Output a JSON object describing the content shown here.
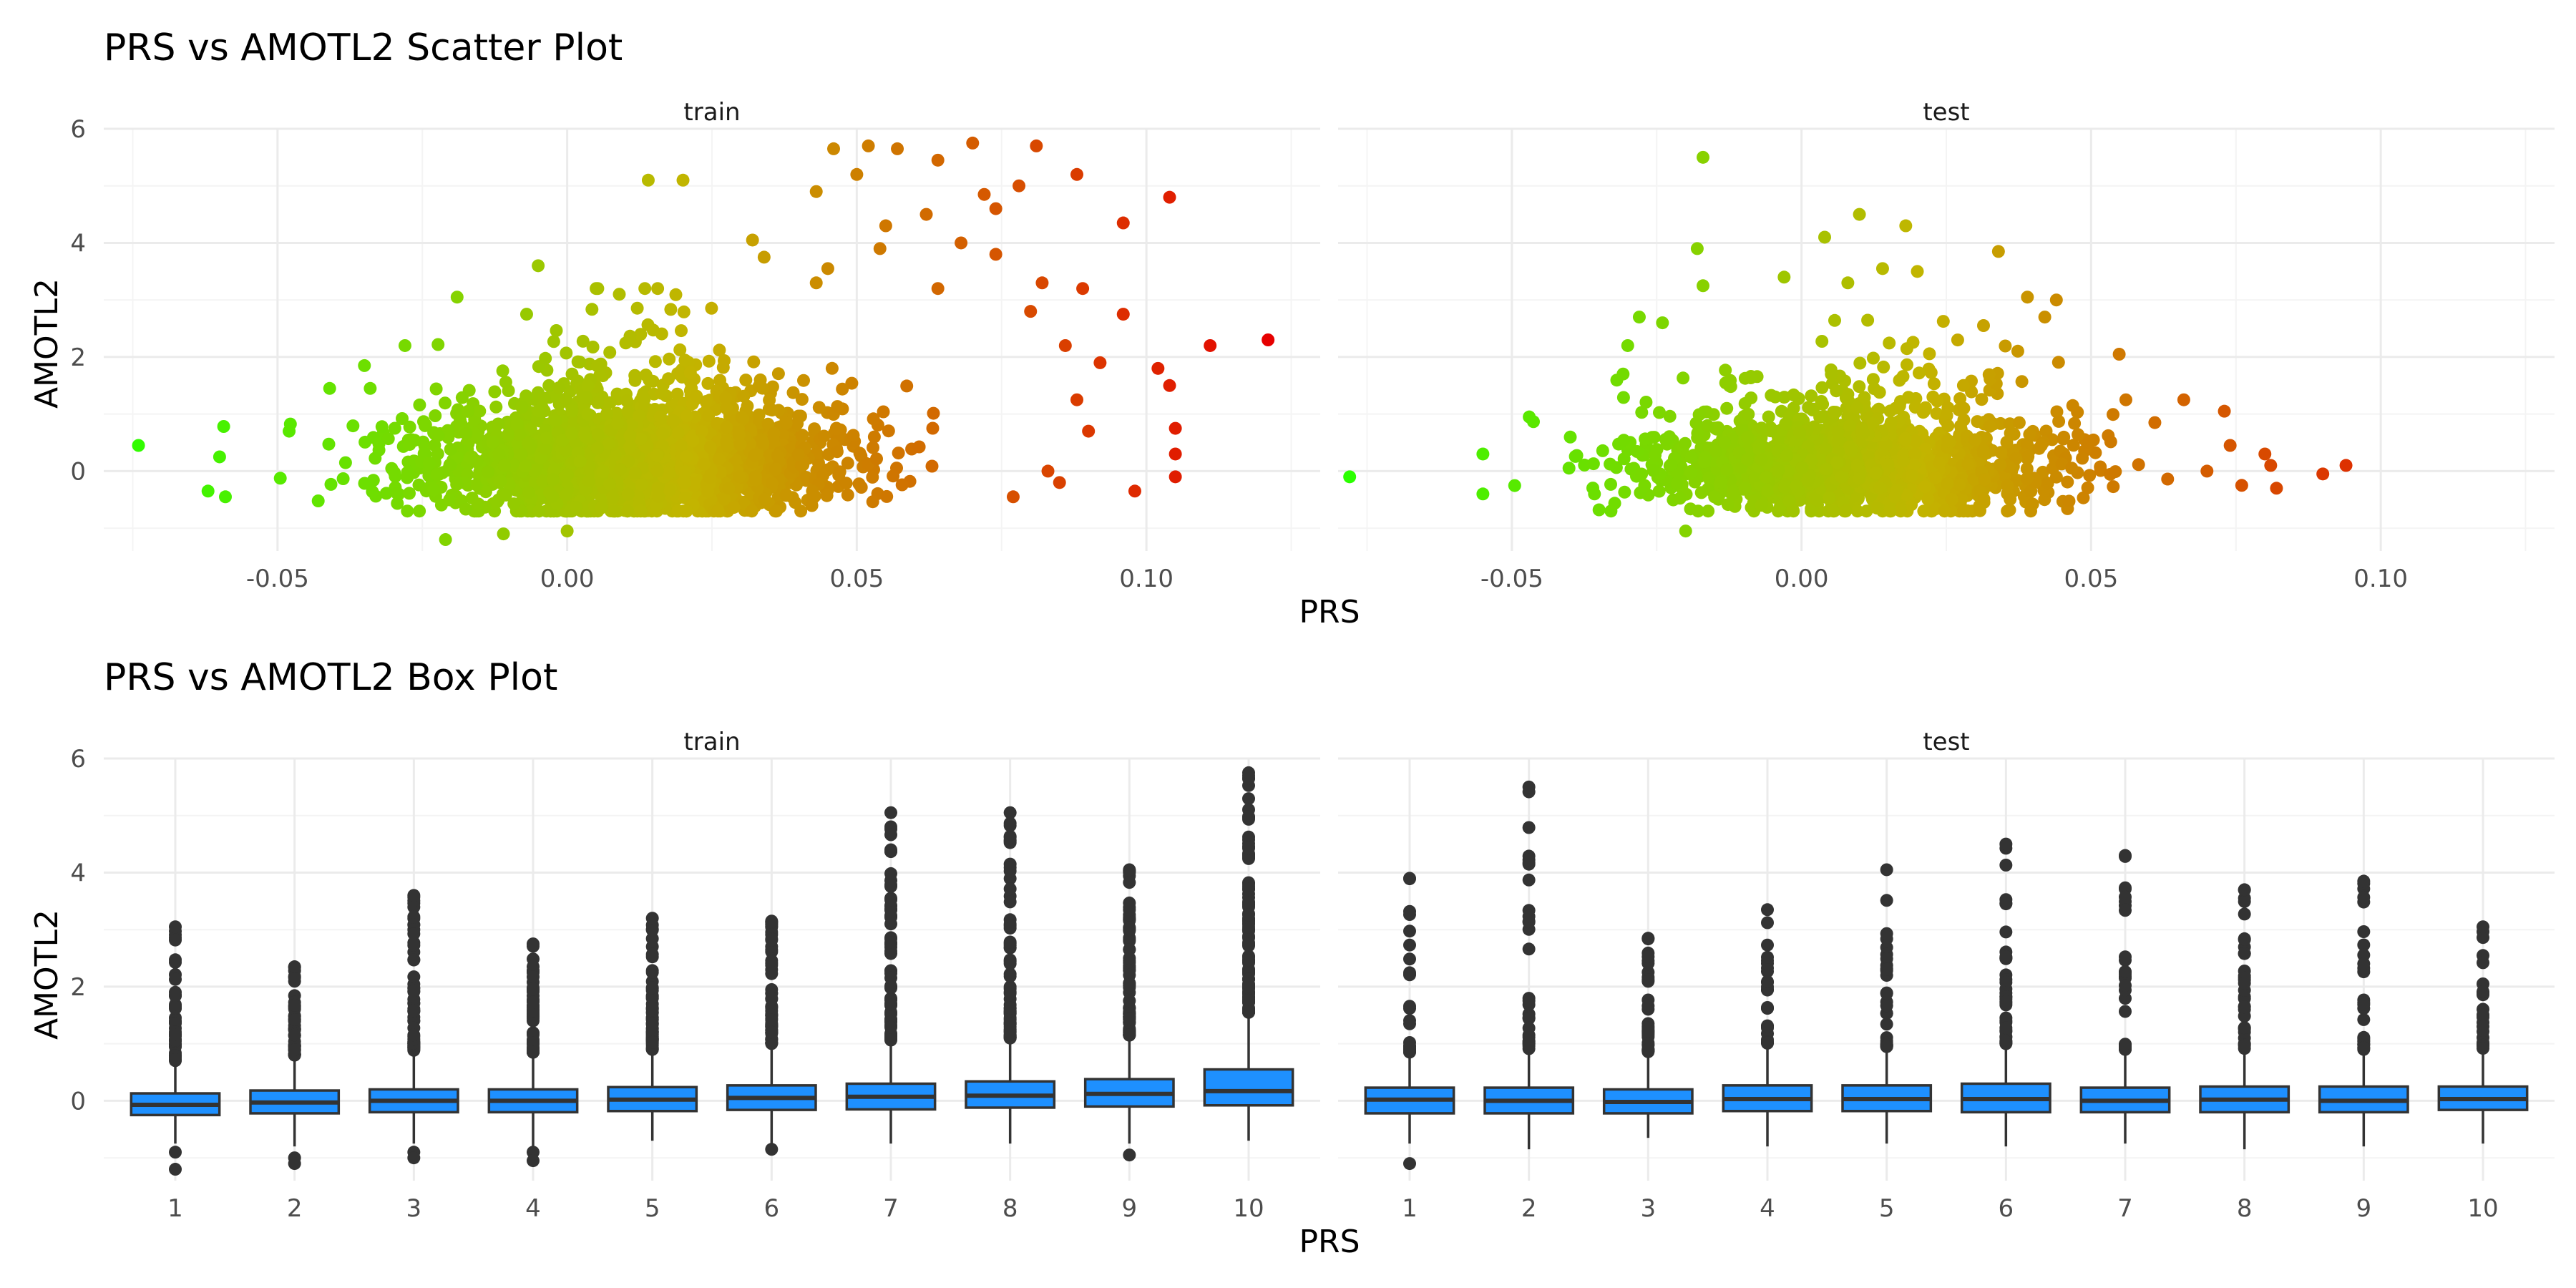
{
  "colors": {
    "grid_major": "#ebebeb",
    "grid_minor": "#f4f4f4",
    "box_fill": "#1e90ff",
    "box_line": "#333333",
    "outlier": "#333333",
    "gradient_low": "#2bff00",
    "gradient_mid": "#c3b400",
    "gradient_high": "#e60000"
  },
  "scatter_title": "PRS vs AMOTL2 Scatter Plot",
  "box_title": "PRS vs AMOTL2 Box Plot",
  "facet_train": "train",
  "facet_test": "test",
  "xlabel": "PRS",
  "ylabel": "AMOTL2",
  "chart_data": [
    {
      "type": "scatter",
      "title": "PRS vs AMOTL2 Scatter Plot",
      "xlabel": "PRS",
      "ylabel": "AMOTL2",
      "xlim": [
        -0.08,
        0.13
      ],
      "ylim": [
        -1.4,
        6.0
      ],
      "x_ticks": [
        -0.05,
        0.0,
        0.05,
        0.1
      ],
      "x_tick_labels": [
        "-0.05",
        "0.00",
        "0.05",
        "0.10"
      ],
      "y_ticks": [
        0,
        2,
        4,
        6
      ],
      "y_tick_labels": [
        "0",
        "2",
        "4",
        "6"
      ],
      "color_by": "PRS",
      "grid": true,
      "facets": [
        {
          "name": "train",
          "core": {
            "x_min": -0.062,
            "x_max": 0.072,
            "x_center": 0.012,
            "y_center": 0.15,
            "y_spread": 0.45
          },
          "notable_points": [
            {
              "x": -0.074,
              "y": 0.45
            },
            {
              "x": 0.121,
              "y": 2.3
            },
            {
              "x": 0.111,
              "y": 2.2
            },
            {
              "x": 0.104,
              "y": 4.8
            },
            {
              "x": 0.096,
              "y": 4.35
            },
            {
              "x": 0.096,
              "y": 2.75
            },
            {
              "x": 0.102,
              "y": 1.8
            },
            {
              "x": 0.104,
              "y": 1.5
            },
            {
              "x": 0.105,
              "y": 0.75
            },
            {
              "x": 0.105,
              "y": 0.3
            },
            {
              "x": 0.105,
              "y": -0.1
            },
            {
              "x": 0.098,
              "y": -0.35
            },
            {
              "x": 0.088,
              "y": 5.2
            },
            {
              "x": 0.081,
              "y": 5.7
            },
            {
              "x": 0.07,
              "y": 5.75
            },
            {
              "x": 0.057,
              "y": 5.65
            },
            {
              "x": 0.052,
              "y": 5.7
            },
            {
              "x": 0.046,
              "y": 5.65
            },
            {
              "x": 0.064,
              "y": 5.45
            },
            {
              "x": 0.05,
              "y": 5.2
            },
            {
              "x": 0.043,
              "y": 4.9
            },
            {
              "x": 0.078,
              "y": 5.0
            },
            {
              "x": 0.072,
              "y": 4.85
            },
            {
              "x": 0.074,
              "y": 4.6
            },
            {
              "x": 0.062,
              "y": 4.5
            },
            {
              "x": 0.055,
              "y": 4.3
            },
            {
              "x": 0.068,
              "y": 4.0
            },
            {
              "x": 0.054,
              "y": 3.9
            },
            {
              "x": 0.074,
              "y": 3.8
            },
            {
              "x": 0.089,
              "y": 3.2
            },
            {
              "x": 0.082,
              "y": 3.3
            },
            {
              "x": 0.032,
              "y": 4.05
            },
            {
              "x": 0.034,
              "y": 3.75
            },
            {
              "x": 0.014,
              "y": 5.1
            },
            {
              "x": 0.02,
              "y": 5.1
            },
            {
              "x": -0.005,
              "y": 3.6
            },
            {
              "x": 0.045,
              "y": 3.55
            },
            {
              "x": 0.043,
              "y": 3.3
            },
            {
              "x": 0.064,
              "y": 3.2
            },
            {
              "x": -0.019,
              "y": 3.05
            },
            {
              "x": 0.005,
              "y": 3.2
            },
            {
              "x": 0.009,
              "y": 3.1
            },
            {
              "x": -0.007,
              "y": 2.75
            },
            {
              "x": -0.028,
              "y": 2.2
            },
            {
              "x": -0.035,
              "y": 1.85
            },
            {
              "x": -0.034,
              "y": 1.45
            },
            {
              "x": -0.041,
              "y": 1.45
            },
            {
              "x": -0.048,
              "y": 0.7
            },
            {
              "x": -0.06,
              "y": 0.25
            },
            {
              "x": -0.059,
              "y": -0.45
            },
            {
              "x": -0.062,
              "y": -0.35
            },
            {
              "x": -0.021,
              "y": -1.2
            },
            {
              "x": -0.011,
              "y": -1.1
            },
            {
              "x": 0.0,
              "y": -1.05
            },
            {
              "x": 0.08,
              "y": 2.8
            },
            {
              "x": 0.086,
              "y": 2.2
            },
            {
              "x": 0.092,
              "y": 1.9
            },
            {
              "x": 0.088,
              "y": 1.25
            },
            {
              "x": 0.09,
              "y": 0.7
            },
            {
              "x": 0.083,
              "y": 0.0
            },
            {
              "x": 0.077,
              "y": -0.45
            },
            {
              "x": 0.085,
              "y": -0.2
            }
          ]
        },
        {
          "name": "test",
          "core": {
            "x_min": -0.055,
            "x_max": 0.072,
            "x_center": 0.008,
            "y_center": 0.05,
            "y_spread": 0.38
          },
          "notable_points": [
            {
              "x": -0.078,
              "y": -0.1
            },
            {
              "x": -0.017,
              "y": 5.5
            },
            {
              "x": -0.018,
              "y": 3.9
            },
            {
              "x": -0.017,
              "y": 3.25
            },
            {
              "x": 0.01,
              "y": 4.5
            },
            {
              "x": 0.018,
              "y": 4.3
            },
            {
              "x": 0.034,
              "y": 3.85
            },
            {
              "x": 0.004,
              "y": 4.1
            },
            {
              "x": -0.003,
              "y": 3.4
            },
            {
              "x": 0.008,
              "y": 3.3
            },
            {
              "x": 0.014,
              "y": 3.55
            },
            {
              "x": 0.02,
              "y": 3.5
            },
            {
              "x": 0.039,
              "y": 3.05
            },
            {
              "x": 0.044,
              "y": 3.0
            },
            {
              "x": 0.042,
              "y": 2.7
            },
            {
              "x": -0.028,
              "y": 2.7
            },
            {
              "x": -0.024,
              "y": 2.6
            },
            {
              "x": -0.03,
              "y": 2.2
            },
            {
              "x": -0.047,
              "y": 0.95
            },
            {
              "x": -0.055,
              "y": 0.3
            },
            {
              "x": -0.055,
              "y": -0.4
            },
            {
              "x": -0.02,
              "y": -1.05
            },
            {
              "x": 0.094,
              "y": 0.1
            },
            {
              "x": 0.09,
              "y": -0.05
            },
            {
              "x": 0.082,
              "y": -0.3
            },
            {
              "x": 0.081,
              "y": 0.1
            },
            {
              "x": 0.08,
              "y": 0.3
            },
            {
              "x": 0.073,
              "y": 1.05
            },
            {
              "x": 0.066,
              "y": 1.25
            },
            {
              "x": 0.056,
              "y": 1.25
            },
            {
              "x": 0.061,
              "y": 0.85
            },
            {
              "x": 0.074,
              "y": 0.45
            },
            {
              "x": 0.07,
              "y": 0.0
            },
            {
              "x": 0.076,
              "y": -0.25
            }
          ]
        }
      ]
    },
    {
      "type": "box",
      "title": "PRS vs AMOTL2 Box Plot",
      "xlabel": "PRS",
      "ylabel": "AMOTL2",
      "categories": [
        "1",
        "2",
        "3",
        "4",
        "5",
        "6",
        "7",
        "8",
        "9",
        "10"
      ],
      "ylim": [
        -1.4,
        6.0
      ],
      "y_ticks": [
        0,
        2,
        4,
        6
      ],
      "y_tick_labels": [
        "0",
        "2",
        "4",
        "6"
      ],
      "grid": true,
      "facets": [
        {
          "name": "train",
          "boxes": [
            {
              "q1": -0.25,
              "median": -0.07,
              "q3": 0.13,
              "whisker_low": -0.75,
              "whisker_high": 0.65,
              "outliers_low": [
                -0.9,
                -1.2
              ],
              "outliers_high_max": 3.05,
              "outliers_high_count": 40
            },
            {
              "q1": -0.22,
              "median": -0.03,
              "q3": 0.18,
              "whisker_low": -0.8,
              "whisker_high": 0.75,
              "outliers_low": [
                -1.0,
                -1.1
              ],
              "outliers_high_max": 2.35,
              "outliers_high_count": 45
            },
            {
              "q1": -0.2,
              "median": 0.0,
              "q3": 0.2,
              "whisker_low": -0.75,
              "whisker_high": 0.8,
              "outliers_low": [
                -0.9,
                -1.0
              ],
              "outliers_high_max": 3.6,
              "outliers_high_count": 50
            },
            {
              "q1": -0.2,
              "median": 0.0,
              "q3": 0.2,
              "whisker_low": -0.8,
              "whisker_high": 0.8,
              "outliers_low": [
                -0.9,
                -1.05
              ],
              "outliers_high_max": 2.75,
              "outliers_high_count": 50
            },
            {
              "q1": -0.18,
              "median": 0.02,
              "q3": 0.24,
              "whisker_low": -0.7,
              "whisker_high": 0.85,
              "outliers_low": [],
              "outliers_high_max": 3.2,
              "outliers_high_count": 55
            },
            {
              "q1": -0.16,
              "median": 0.05,
              "q3": 0.27,
              "whisker_low": -0.75,
              "whisker_high": 0.95,
              "outliers_low": [
                -0.85
              ],
              "outliers_high_max": 3.15,
              "outliers_high_count": 55
            },
            {
              "q1": -0.15,
              "median": 0.07,
              "q3": 0.3,
              "whisker_low": -0.75,
              "whisker_high": 1.0,
              "outliers_low": [],
              "outliers_high_max": 5.05,
              "outliers_high_count": 60
            },
            {
              "q1": -0.12,
              "median": 0.09,
              "q3": 0.34,
              "whisker_low": -0.75,
              "whisker_high": 1.05,
              "outliers_low": [],
              "outliers_high_max": 5.05,
              "outliers_high_count": 60
            },
            {
              "q1": -0.1,
              "median": 0.12,
              "q3": 0.38,
              "whisker_low": -0.75,
              "whisker_high": 1.1,
              "outliers_low": [
                -0.95
              ],
              "outliers_high_max": 4.05,
              "outliers_high_count": 70
            },
            {
              "q1": -0.08,
              "median": 0.17,
              "q3": 0.55,
              "whisker_low": -0.7,
              "whisker_high": 1.5,
              "outliers_low": [],
              "outliers_high_max": 5.75,
              "outliers_high_count": 90
            }
          ]
        },
        {
          "name": "test",
          "boxes": [
            {
              "q1": -0.22,
              "median": 0.02,
              "q3": 0.23,
              "whisker_low": -0.75,
              "whisker_high": 0.8,
              "outliers_low": [
                -1.1
              ],
              "outliers_high_max": 3.9,
              "outliers_high_count": 25
            },
            {
              "q1": -0.22,
              "median": 0.0,
              "q3": 0.23,
              "whisker_low": -0.85,
              "whisker_high": 0.85,
              "outliers_low": [],
              "outliers_high_max": 5.5,
              "outliers_high_count": 30
            },
            {
              "q1": -0.22,
              "median": -0.02,
              "q3": 0.2,
              "whisker_low": -0.65,
              "whisker_high": 0.8,
              "outliers_low": [],
              "outliers_high_max": 2.85,
              "outliers_high_count": 30
            },
            {
              "q1": -0.18,
              "median": 0.03,
              "q3": 0.27,
              "whisker_low": -0.8,
              "whisker_high": 0.95,
              "outliers_low": [],
              "outliers_high_max": 3.35,
              "outliers_high_count": 25
            },
            {
              "q1": -0.18,
              "median": 0.03,
              "q3": 0.27,
              "whisker_low": -0.75,
              "whisker_high": 0.9,
              "outliers_low": [],
              "outliers_high_max": 4.05,
              "outliers_high_count": 30
            },
            {
              "q1": -0.2,
              "median": 0.03,
              "q3": 0.3,
              "whisker_low": -0.8,
              "whisker_high": 0.95,
              "outliers_low": [],
              "outliers_high_max": 4.5,
              "outliers_high_count": 35
            },
            {
              "q1": -0.2,
              "median": 0.0,
              "q3": 0.23,
              "whisker_low": -0.75,
              "whisker_high": 0.85,
              "outliers_low": [],
              "outliers_high_max": 4.3,
              "outliers_high_count": 30
            },
            {
              "q1": -0.2,
              "median": 0.02,
              "q3": 0.25,
              "whisker_low": -0.85,
              "whisker_high": 0.85,
              "outliers_low": [],
              "outliers_high_max": 3.7,
              "outliers_high_count": 30
            },
            {
              "q1": -0.2,
              "median": 0.0,
              "q3": 0.25,
              "whisker_low": -0.8,
              "whisker_high": 0.85,
              "outliers_low": [],
              "outliers_high_max": 3.85,
              "outliers_high_count": 25
            },
            {
              "q1": -0.16,
              "median": 0.03,
              "q3": 0.25,
              "whisker_low": -0.75,
              "whisker_high": 0.85,
              "outliers_low": [],
              "outliers_high_max": 3.05,
              "outliers_high_count": 20
            }
          ]
        }
      ]
    }
  ]
}
